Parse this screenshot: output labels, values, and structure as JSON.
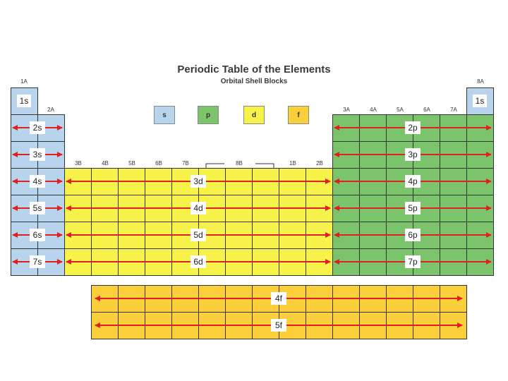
{
  "header": {
    "title": "Periodic Table of the Elements",
    "subtitle": "Orbital Shell Blocks"
  },
  "legend": [
    {
      "label": "s",
      "color": "#b7d4ec"
    },
    {
      "label": "p",
      "color": "#7cc46b"
    },
    {
      "label": "d",
      "color": "#f6f24a"
    },
    {
      "label": "f",
      "color": "#fbcf3a"
    }
  ],
  "groups": {
    "g1": "1A",
    "g2": "2A",
    "g3": "3B",
    "g4": "4B",
    "g5": "5B",
    "g6": "6B",
    "g7": "7B",
    "g8": "8B",
    "g11": "1B",
    "g12": "2B",
    "g13": "3A",
    "g14": "4A",
    "g15": "5A",
    "g16": "6A",
    "g17": "7A",
    "g18": "8A"
  },
  "colors": {
    "s": "#b7d4ec",
    "p": "#7cc46b",
    "d": "#f6f24a",
    "f": "#fbcf3a",
    "arrow": "#e02020"
  },
  "blocks": {
    "hydrogen": "1s",
    "helium": "1s",
    "s_rows": [
      "2s",
      "3s",
      "4s",
      "5s",
      "6s",
      "7s"
    ],
    "p_rows": [
      "2p",
      "3p",
      "4p",
      "5p",
      "6p",
      "7p"
    ],
    "d_rows": [
      "3d",
      "4d",
      "5d",
      "6d"
    ],
    "f_rows": [
      "4f",
      "5f"
    ]
  }
}
